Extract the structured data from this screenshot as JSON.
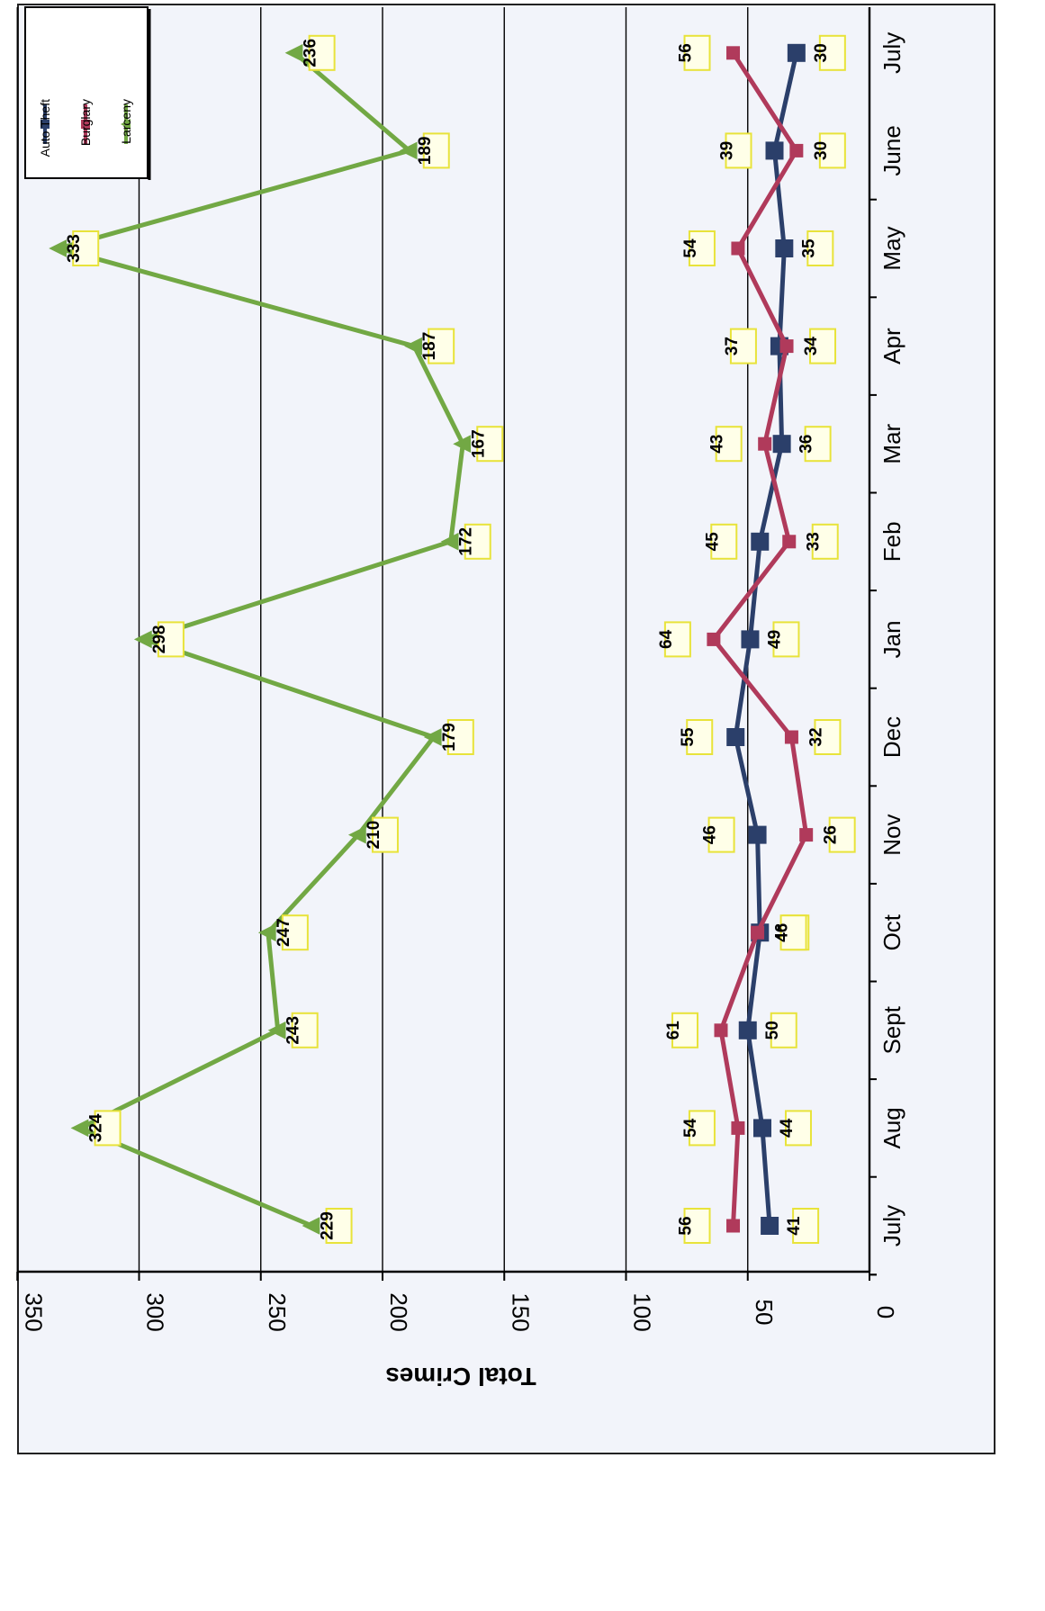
{
  "chart_data": {
    "type": "line",
    "orientation": "rotated-90-clockwise",
    "categories": [
      "July",
      "Aug",
      "Sept",
      "Oct",
      "Nov",
      "Dec",
      "Jan",
      "Feb",
      "Mar",
      "Apr",
      "May",
      "June",
      "July"
    ],
    "series": [
      {
        "name": "Auto Theft",
        "color": "#2b3f6a",
        "marker": "square",
        "values": [
          41,
          44,
          50,
          45,
          46,
          55,
          49,
          45,
          36,
          37,
          35,
          39,
          30
        ]
      },
      {
        "name": "Burglary",
        "color": "#b03a5b",
        "marker": "square",
        "values": [
          56,
          54,
          61,
          46,
          26,
          32,
          64,
          33,
          43,
          34,
          54,
          30,
          56
        ]
      },
      {
        "name": "Larceny",
        "color": "#72a844",
        "marker": "triangle",
        "values": [
          229,
          324,
          243,
          247,
          210,
          179,
          298,
          172,
          167,
          187,
          333,
          189,
          236
        ]
      }
    ],
    "ylabel": "Total Crimes",
    "ylim": [
      0,
      350
    ],
    "yticks": [
      0,
      50,
      100,
      150,
      200,
      250,
      300,
      350
    ],
    "grid": true,
    "legend": "top-left",
    "colors": {
      "axis": "#000000",
      "grid": "#000000",
      "label_box": "#e8e33a",
      "label_bg": "#ffffe8"
    }
  }
}
